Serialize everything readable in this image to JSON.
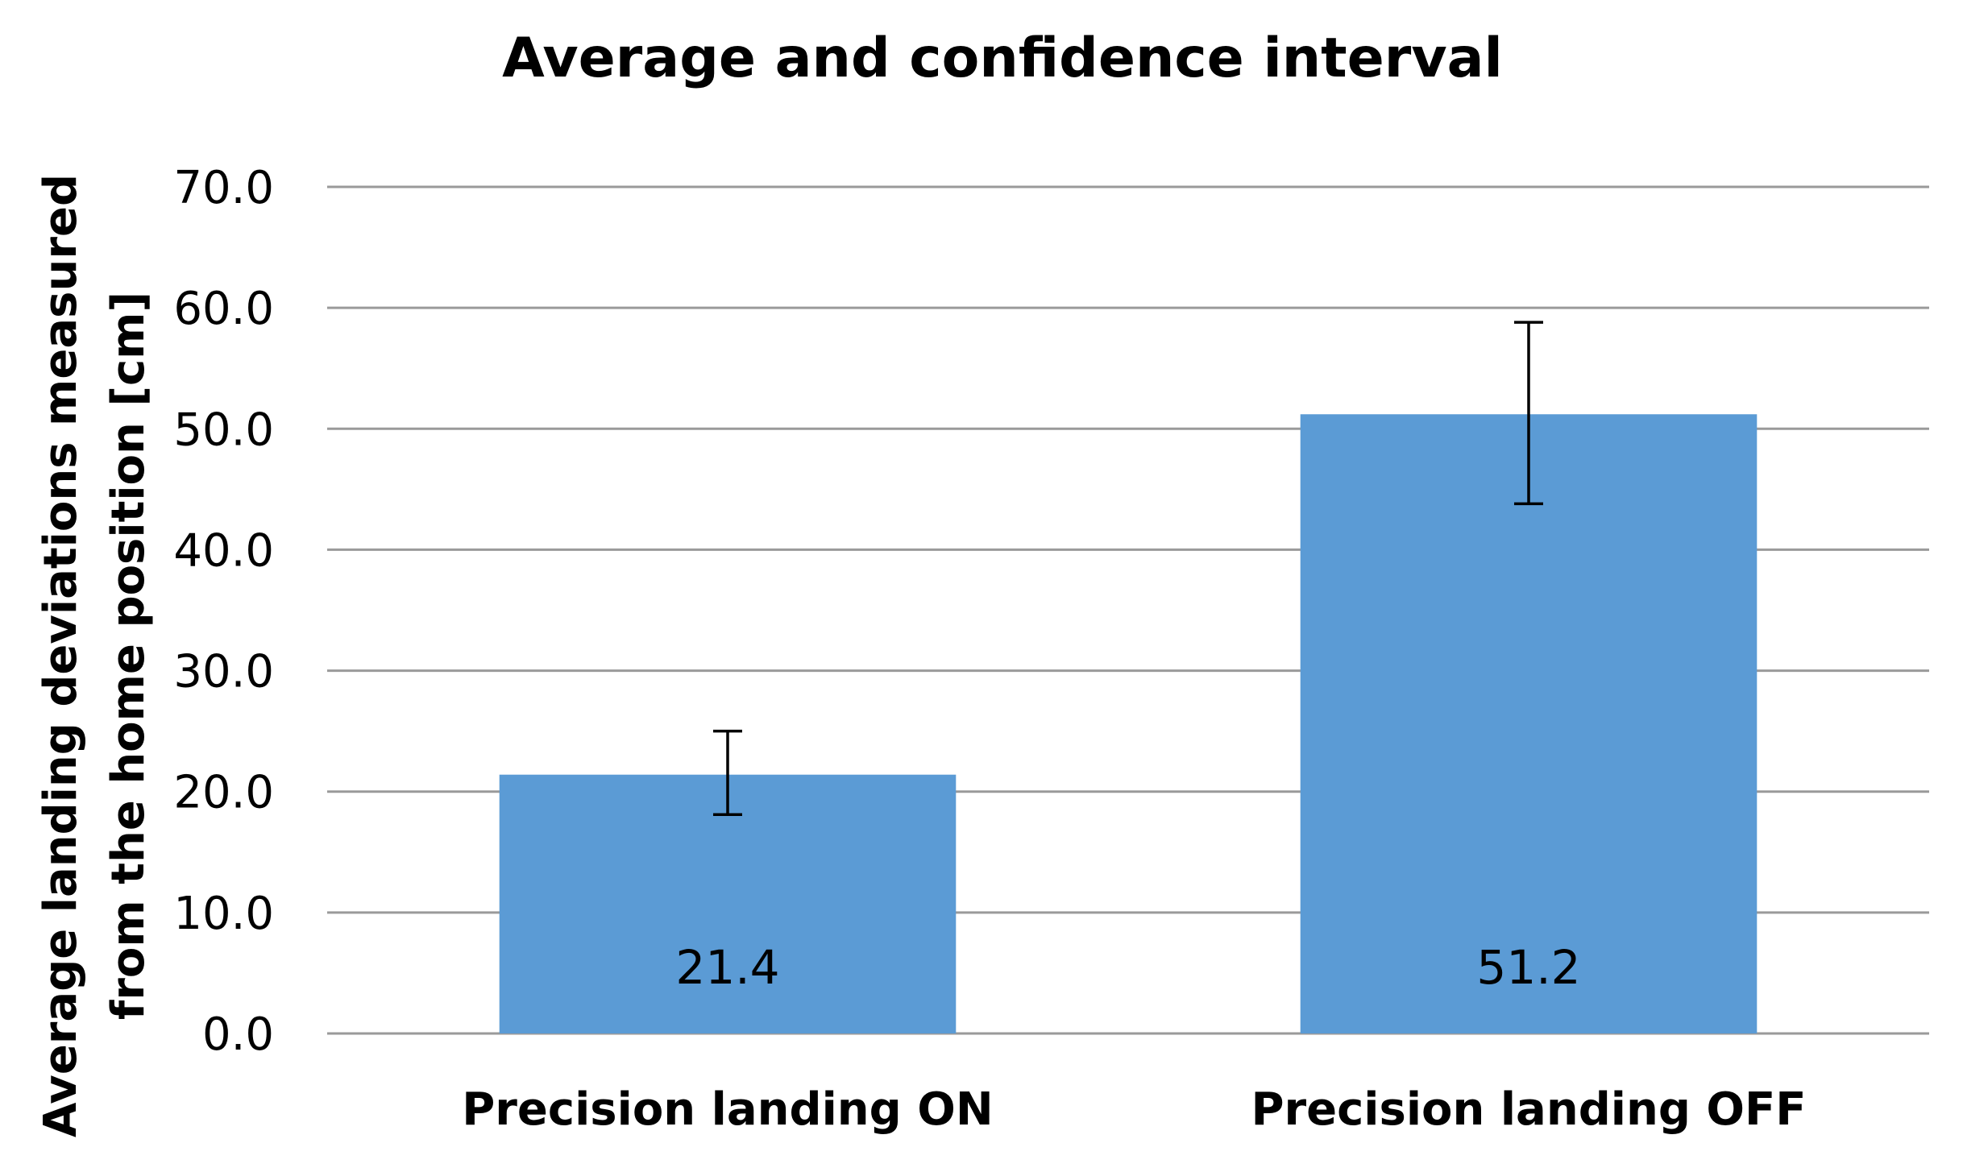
{
  "chart_data": {
    "type": "bar",
    "title": "Average and confidence interval",
    "ylabel_lines": [
      "Average landing deviations measured",
      "from the home position [cm]"
    ],
    "xlabel": "",
    "categories": [
      "Precision landing ON",
      "Precision landing OFF"
    ],
    "values": [
      21.4,
      51.2
    ],
    "value_labels": [
      "21.4",
      "51.2"
    ],
    "error_low": [
      18.1,
      43.8
    ],
    "error_high": [
      25.0,
      58.8
    ],
    "ylim": [
      0,
      70
    ],
    "yticks": [
      0,
      10,
      20,
      30,
      40,
      50,
      60,
      70
    ],
    "ytick_labels": [
      "0.0",
      "10.0",
      "20.0",
      "30.0",
      "40.0",
      "50.0",
      "60.0",
      "70.0"
    ],
    "grid": true,
    "legend": "none",
    "bar_color": "#5b9bd5",
    "grid_color": "#9a9a9a"
  }
}
